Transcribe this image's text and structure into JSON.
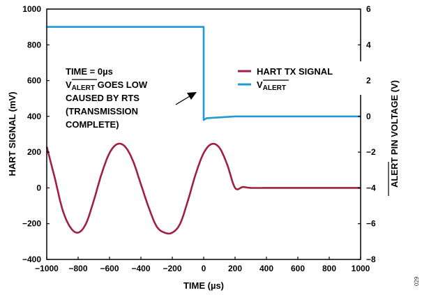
{
  "figure_number": "029",
  "colors": {
    "hart": "#a0203f",
    "alert": "#1f9ad6",
    "axis": "#000000"
  },
  "annotation": {
    "line1": "TIME = 0µs",
    "line2_prefix": "V",
    "line2_sub": "ALERT",
    "line2_suffix": " GOES LOW",
    "line3": "CAUSED BY RTS",
    "line4": "(TRANSMISSION",
    "line5": "COMPLETE)"
  },
  "chart_data": {
    "type": "line",
    "xlabel": "TIME (µs)",
    "ylabel_left": "HART SIGNAL (mV)",
    "ylabel_right_overline": "ALERT",
    "ylabel_right_suffix": " PIN VOLTAGE (V)",
    "xlim": [
      -1000,
      1000
    ],
    "ylim_left": [
      -400,
      1000
    ],
    "ylim_right": [
      -8,
      6
    ],
    "x_ticks": [
      "−1000",
      "−800",
      "−600",
      "−400",
      "−200",
      "0",
      "200",
      "400",
      "600",
      "800",
      "1000"
    ],
    "y_left_ticks": [
      "1000",
      "800",
      "600",
      "400",
      "200",
      "0",
      "−200",
      "−400"
    ],
    "y_right_ticks": [
      "6",
      "4",
      "2",
      "0",
      "−2",
      "−4",
      "−6",
      "−8"
    ],
    "grid": false,
    "legend_position": "top-right",
    "series": [
      {
        "name": "HART TX SIGNAL",
        "axis": "left",
        "x": [
          -1000,
          -950,
          -900,
          -850,
          -800,
          -750,
          -700,
          -650,
          -600,
          -550,
          -500,
          -450,
          -400,
          -350,
          -300,
          -250,
          -200,
          -150,
          -100,
          -50,
          0,
          50,
          100,
          150,
          200,
          250,
          300,
          400,
          500,
          600,
          700,
          800,
          900,
          1000
        ],
        "y": [
          230,
          60,
          -120,
          -220,
          -250,
          -200,
          -70,
          80,
          195,
          245,
          230,
          150,
          20,
          -110,
          -215,
          -250,
          -250,
          -200,
          -70,
          80,
          195,
          245,
          225,
          130,
          0,
          5,
          0,
          0,
          0,
          0,
          0,
          0,
          0,
          0
        ]
      },
      {
        "name": "V_ALERT",
        "legend_prefix": "V",
        "legend_sub": "ALERT",
        "axis": "right",
        "x": [
          -1000,
          -500,
          0,
          0,
          20,
          200,
          500,
          1000
        ],
        "y": [
          5.0,
          5.0,
          5.0,
          -0.2,
          -0.1,
          0.0,
          0.0,
          0.0
        ]
      }
    ]
  }
}
